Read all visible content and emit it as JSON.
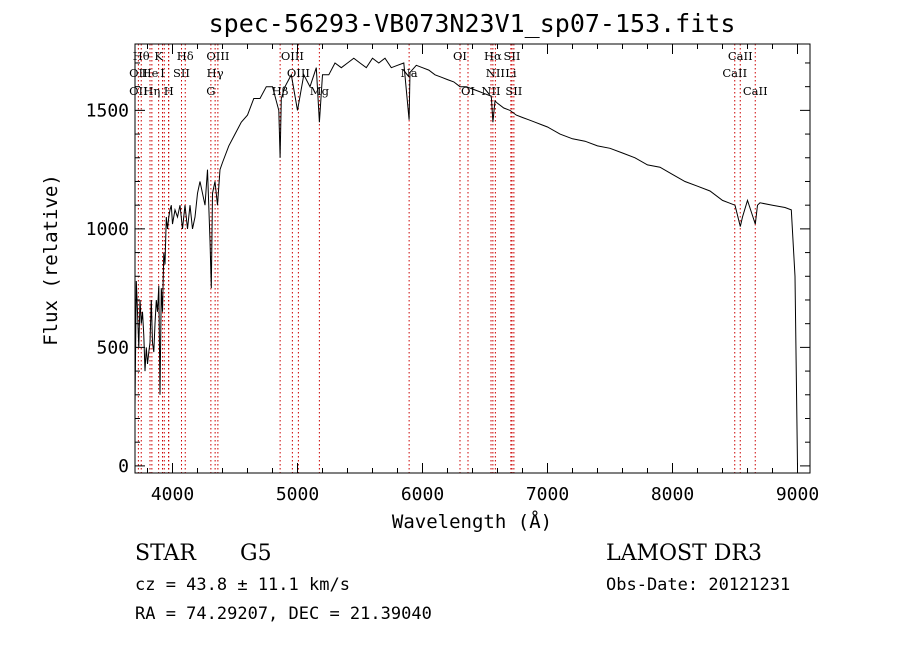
{
  "chart_data": {
    "type": "line",
    "title": "spec-56293-VB073N23V1_sp07-153.fits",
    "xlabel": "Wavelength (Å)",
    "ylabel": "Flux (relative)",
    "xlim": [
      3700,
      9100
    ],
    "ylim": [
      -30,
      1780
    ],
    "xticks": [
      4000,
      5000,
      6000,
      7000,
      8000,
      9000
    ],
    "xtick_labels": [
      "4000",
      "5000",
      "6000",
      "7000",
      "8000",
      "9000"
    ],
    "yticks": [
      0,
      500,
      1000,
      1500
    ],
    "ytick_labels": [
      "0",
      "500",
      "1000",
      "1500"
    ],
    "line_color": "#000000",
    "marker_color": "#cc0000",
    "series": [
      {
        "name": "flux",
        "x": [
          3700,
          3710,
          3720,
          3730,
          3740,
          3750,
          3760,
          3770,
          3780,
          3790,
          3800,
          3810,
          3820,
          3830,
          3840,
          3850,
          3860,
          3870,
          3880,
          3890,
          3900,
          3910,
          3920,
          3930,
          3940,
          3950,
          3960,
          3970,
          3980,
          3990,
          4000,
          4020,
          4040,
          4060,
          4080,
          4100,
          4120,
          4140,
          4160,
          4180,
          4200,
          4220,
          4240,
          4260,
          4280,
          4300,
          4310,
          4320,
          4340,
          4360,
          4380,
          4400,
          4450,
          4500,
          4550,
          4600,
          4650,
          4700,
          4750,
          4800,
          4850,
          4861,
          4870,
          4900,
          4950,
          5000,
          5050,
          5100,
          5150,
          5175,
          5200,
          5250,
          5300,
          5350,
          5400,
          5450,
          5500,
          5550,
          5600,
          5650,
          5700,
          5750,
          5800,
          5850,
          5893,
          5900,
          5950,
          6000,
          6050,
          6100,
          6150,
          6200,
          6250,
          6300,
          6350,
          6400,
          6450,
          6500,
          6550,
          6563,
          6580,
          6600,
          6650,
          6700,
          6750,
          6800,
          6850,
          6900,
          6950,
          7000,
          7100,
          7200,
          7300,
          7400,
          7500,
          7600,
          7700,
          7800,
          7900,
          8000,
          8100,
          8200,
          8300,
          8400,
          8450,
          8500,
          8542,
          8560,
          8600,
          8662,
          8680,
          8700,
          8800,
          8900,
          8950,
          8980,
          9000
        ],
        "y": [
          250,
          780,
          650,
          500,
          700,
          600,
          650,
          550,
          400,
          500,
          430,
          480,
          520,
          700,
          520,
          480,
          600,
          700,
          650,
          760,
          300,
          750,
          650,
          900,
          850,
          1050,
          1000,
          1050,
          1080,
          1100,
          1020,
          1080,
          1050,
          1100,
          1000,
          1100,
          1000,
          1100,
          1000,
          1050,
          1150,
          1200,
          1150,
          1100,
          1250,
          950,
          750,
          1150,
          1200,
          1100,
          1250,
          1280,
          1350,
          1400,
          1450,
          1480,
          1550,
          1550,
          1600,
          1600,
          1500,
          1300,
          1550,
          1600,
          1650,
          1500,
          1650,
          1600,
          1680,
          1450,
          1650,
          1650,
          1700,
          1680,
          1700,
          1720,
          1700,
          1680,
          1720,
          1700,
          1720,
          1680,
          1690,
          1700,
          1460,
          1660,
          1690,
          1680,
          1670,
          1650,
          1640,
          1630,
          1620,
          1600,
          1600,
          1590,
          1580,
          1570,
          1560,
          1450,
          1540,
          1530,
          1510,
          1500,
          1480,
          1470,
          1460,
          1450,
          1440,
          1430,
          1400,
          1380,
          1370,
          1350,
          1340,
          1320,
          1300,
          1270,
          1260,
          1230,
          1200,
          1180,
          1160,
          1120,
          1110,
          1100,
          1010,
          1050,
          1120,
          1020,
          1100,
          1110,
          1100,
          1090,
          1080,
          800,
          0
        ]
      }
    ],
    "lines": [
      {
        "wave": 3750,
        "label": "Hθ",
        "row": 1
      },
      {
        "wave": 3727,
        "label": "OII",
        "row": 2
      },
      {
        "wave": 3727,
        "label": "OII",
        "row": 3
      },
      {
        "wave": 3820,
        "label": "He",
        "row": 2
      },
      {
        "wave": 3835,
        "label": "Hη",
        "row": 3
      },
      {
        "wave": 3889,
        "label": "K",
        "row": 1
      },
      {
        "wave": 3920,
        "label": "I",
        "row": 2
      },
      {
        "wave": 3970,
        "label": "H",
        "row": 3
      },
      {
        "wave": 3934,
        "label": "",
        "row": 0
      },
      {
        "wave": 3968,
        "label": "",
        "row": 0
      },
      {
        "wave": 4102,
        "label": "Hδ",
        "row": 1
      },
      {
        "wave": 4072,
        "label": "SII",
        "row": 2
      },
      {
        "wave": 4307,
        "label": "G",
        "row": 3
      },
      {
        "wave": 4341,
        "label": "Hγ",
        "row": 2
      },
      {
        "wave": 4363,
        "label": "OIII",
        "row": 1
      },
      {
        "wave": 4861,
        "label": "Hβ",
        "row": 3
      },
      {
        "wave": 4959,
        "label": "OIII",
        "row": 1
      },
      {
        "wave": 5007,
        "label": "OIII",
        "row": 2
      },
      {
        "wave": 5175,
        "label": "Mg",
        "row": 3
      },
      {
        "wave": 5893,
        "label": "Na",
        "row": 2
      },
      {
        "wave": 6300,
        "label": "OI",
        "row": 1
      },
      {
        "wave": 6364,
        "label": "OI",
        "row": 3
      },
      {
        "wave": 6548,
        "label": "NII",
        "row": 3
      },
      {
        "wave": 6563,
        "label": "Hα",
        "row": 1
      },
      {
        "wave": 6583,
        "label": "NII",
        "row": 2
      },
      {
        "wave": 6707,
        "label": "Li",
        "row": 2
      },
      {
        "wave": 6716,
        "label": "SII",
        "row": 1
      },
      {
        "wave": 6731,
        "label": "SII",
        "row": 3
      },
      {
        "wave": 8498,
        "label": "CaII",
        "row": 2
      },
      {
        "wave": 8542,
        "label": "CaII",
        "row": 1
      },
      {
        "wave": 8662,
        "label": "CaII",
        "row": 3
      }
    ]
  },
  "info": {
    "object_type": "STAR",
    "subclass": "G5",
    "cz": "cz = 43.8 ± 11.1 km/s",
    "radec": "RA =  74.29207, DEC =  21.39040",
    "survey": "LAMOST DR3",
    "obs_date": "Obs-Date: 20121231"
  }
}
